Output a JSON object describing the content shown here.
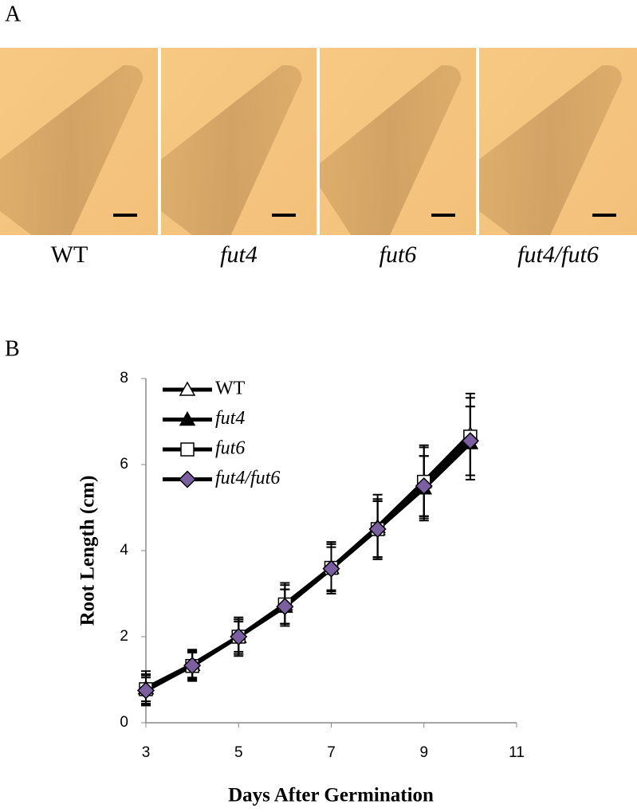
{
  "panel_a": {
    "label": "A",
    "images": [
      {
        "label": "WT"
      },
      {
        "label": "fut4"
      },
      {
        "label": "fut6"
      },
      {
        "label": "fut4/fut6"
      }
    ]
  },
  "chart_data": {
    "type": "line",
    "panel_label": "B",
    "x_label": "Days After Germination",
    "y_label": "Root Length (cm)",
    "x": [
      3,
      4,
      5,
      6,
      7,
      8,
      9,
      10
    ],
    "series": [
      {
        "name": "WT",
        "color": "#000000",
        "marker": "triangle-open",
        "values": [
          0.8,
          1.35,
          2.0,
          2.75,
          3.6,
          4.55,
          5.6,
          6.7
        ],
        "errors": [
          0.4,
          0.35,
          0.4,
          0.45,
          0.6,
          0.75,
          0.85,
          0.95
        ]
      },
      {
        "name": "fut4",
        "color": "#000000",
        "marker": "triangle-filled",
        "values": [
          0.8,
          1.35,
          2.0,
          2.7,
          3.6,
          4.5,
          5.45,
          6.5
        ],
        "errors": [
          0.3,
          0.3,
          0.4,
          0.4,
          0.55,
          0.65,
          0.75,
          0.85
        ]
      },
      {
        "name": "fut6",
        "color": "#000000",
        "marker": "square-open",
        "values": [
          0.78,
          1.32,
          2.0,
          2.75,
          3.6,
          4.5,
          5.6,
          6.65
        ],
        "errors": [
          0.35,
          0.35,
          0.45,
          0.5,
          0.6,
          0.7,
          0.8,
          0.9
        ]
      },
      {
        "name": "fut4/fut6",
        "color": "#7b5fa0",
        "marker": "diamond-filled",
        "values": [
          0.75,
          1.33,
          2.0,
          2.7,
          3.58,
          4.5,
          5.5,
          6.55
        ],
        "errors": [
          0.3,
          0.3,
          0.35,
          0.4,
          0.5,
          0.65,
          0.7,
          0.8
        ]
      }
    ],
    "xlim": [
      3,
      11
    ],
    "xticks": [
      3,
      5,
      7,
      9,
      11
    ],
    "ylim": [
      0,
      8
    ],
    "yticks": [
      0,
      2,
      4,
      6,
      8
    ],
    "grid": false,
    "legend": "top-left"
  }
}
